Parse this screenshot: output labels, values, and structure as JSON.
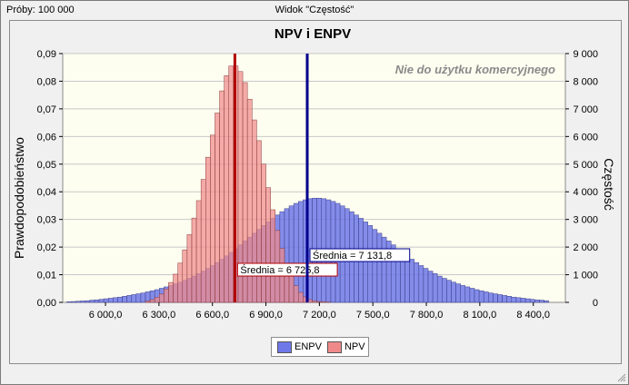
{
  "window": {
    "trials_label": "Próby: 100 000",
    "view_title": "Widok \"Częstość\""
  },
  "legend": {
    "items": [
      {
        "label": "ENPV",
        "color": "#6f78e8"
      },
      {
        "label": "NPV",
        "color": "#f08a8a"
      }
    ]
  },
  "chart_data": {
    "type": "bar",
    "title": "NPV i ENPV",
    "watermark": "Nie do użytku komercyjnego",
    "ylabel": "Prawdopodobieństwo",
    "ylabel_right": "Częstość",
    "xlim": [
      5760,
      8580
    ],
    "ylim": [
      0,
      0.09
    ],
    "ylim_right": [
      0,
      9000
    ],
    "x_ticks": [
      6000,
      6300,
      6600,
      6900,
      7200,
      7500,
      7800,
      8100,
      8400
    ],
    "x_tick_labels": [
      "6 000,0",
      "6 300,0",
      "6 600,0",
      "6 900,0",
      "7 200,0",
      "7 500,0",
      "7 800,0",
      "8 100,0",
      "8 400,0"
    ],
    "y_ticks": [
      0,
      0.01,
      0.02,
      0.03,
      0.04,
      0.05,
      0.06,
      0.07,
      0.08,
      0.09
    ],
    "y_tick_labels": [
      "0,00",
      "0,01",
      "0,02",
      "0,03",
      "0,04",
      "0,05",
      "0,06",
      "0,07",
      "0,08",
      "0,09"
    ],
    "y_right_tick_labels": [
      "0",
      "1 000",
      "2 000",
      "3 000",
      "4 000",
      "5 000",
      "6 000",
      "7 000",
      "8 000",
      "9 000"
    ],
    "grid": true,
    "legend_position": "bottom",
    "bin_width": 26,
    "series": [
      {
        "name": "ENPV",
        "color": "#6f78e8",
        "x": [
          5795,
          5821,
          5847,
          5873,
          5899,
          5925,
          5951,
          5977,
          6003,
          6029,
          6055,
          6081,
          6107,
          6133,
          6159,
          6185,
          6211,
          6237,
          6263,
          6289,
          6315,
          6341,
          6367,
          6393,
          6419,
          6445,
          6471,
          6497,
          6523,
          6549,
          6575,
          6601,
          6627,
          6653,
          6679,
          6705,
          6731,
          6757,
          6783,
          6809,
          6835,
          6861,
          6887,
          6913,
          6939,
          6965,
          6991,
          7017,
          7043,
          7069,
          7095,
          7121,
          7147,
          7173,
          7199,
          7225,
          7251,
          7277,
          7303,
          7329,
          7355,
          7381,
          7407,
          7433,
          7459,
          7485,
          7511,
          7537,
          7563,
          7589,
          7615,
          7641,
          7667,
          7693,
          7719,
          7745,
          7771,
          7797,
          7823,
          7849,
          7875,
          7901,
          7927,
          7953,
          7979,
          8005,
          8031,
          8057,
          8083,
          8109,
          8135,
          8161,
          8187,
          8213,
          8239,
          8265,
          8291,
          8317,
          8343,
          8369,
          8395,
          8421,
          8447,
          8473
        ],
        "values": [
          0.0002,
          0.0003,
          0.0004,
          0.0005,
          0.0006,
          0.0008,
          0.0009,
          0.0011,
          0.0013,
          0.0015,
          0.0017,
          0.0019,
          0.0022,
          0.0025,
          0.0028,
          0.0031,
          0.0034,
          0.0038,
          0.0042,
          0.0046,
          0.0051,
          0.0056,
          0.0061,
          0.0067,
          0.0073,
          0.008,
          0.0087,
          0.0095,
          0.0104,
          0.0113,
          0.0123,
          0.0133,
          0.0144,
          0.0156,
          0.0168,
          0.0181,
          0.0194,
          0.0208,
          0.0222,
          0.0236,
          0.025,
          0.0264,
          0.0278,
          0.0291,
          0.0304,
          0.0316,
          0.0328,
          0.0339,
          0.0349,
          0.0358,
          0.0365,
          0.0371,
          0.0375,
          0.0377,
          0.0377,
          0.0375,
          0.0371,
          0.0365,
          0.0358,
          0.0349,
          0.0339,
          0.0328,
          0.0316,
          0.0304,
          0.0291,
          0.0278,
          0.0264,
          0.025,
          0.0236,
          0.0222,
          0.0208,
          0.0194,
          0.0181,
          0.0168,
          0.0156,
          0.0144,
          0.0133,
          0.0123,
          0.0113,
          0.0104,
          0.0095,
          0.0087,
          0.008,
          0.0073,
          0.0067,
          0.0061,
          0.0056,
          0.0051,
          0.0046,
          0.0042,
          0.0038,
          0.0034,
          0.0031,
          0.0028,
          0.0025,
          0.0022,
          0.0019,
          0.0017,
          0.0015,
          0.0013,
          0.0011,
          0.0009,
          0.0008,
          0.0006
        ]
      },
      {
        "name": "NPV",
        "color": "#f08a8a",
        "x": [
          6237,
          6263,
          6289,
          6315,
          6341,
          6367,
          6393,
          6419,
          6445,
          6471,
          6497,
          6523,
          6549,
          6575,
          6601,
          6627,
          6653,
          6679,
          6705,
          6731,
          6757,
          6783,
          6809,
          6835,
          6861,
          6887,
          6913,
          6939,
          6965,
          6991,
          7017,
          7043,
          7069,
          7095,
          7121,
          7147,
          7173,
          7199,
          7225,
          7251
        ],
        "values": [
          0.0005,
          0.001,
          0.0018,
          0.003,
          0.0048,
          0.0072,
          0.0102,
          0.0142,
          0.019,
          0.0245,
          0.0305,
          0.0368,
          0.0445,
          0.0525,
          0.0605,
          0.0685,
          0.0765,
          0.082,
          0.0855,
          0.0855,
          0.0835,
          0.0795,
          0.0735,
          0.066,
          0.0585,
          0.05,
          0.0415,
          0.0335,
          0.026,
          0.0195,
          0.014,
          0.0095,
          0.006,
          0.0036,
          0.002,
          0.001,
          0.0005,
          0.0003,
          0.0002,
          0.0001
        ]
      }
    ],
    "mean_lines": [
      {
        "series": "NPV",
        "value": 6725.8,
        "label": "Średnia = 6 725,8",
        "color": "#b00000"
      },
      {
        "series": "ENPV",
        "value": 7131.8,
        "label": "Średnia = 7 131,8",
        "color": "#00008b"
      }
    ]
  }
}
